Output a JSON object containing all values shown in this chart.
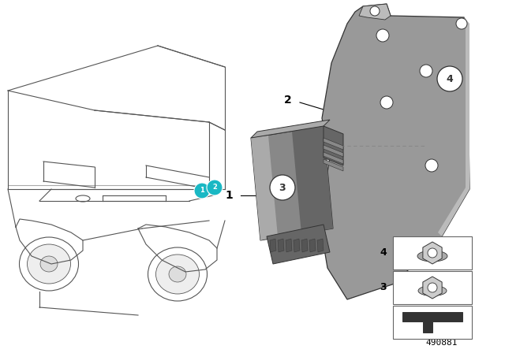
{
  "background_color": "#ffffff",
  "part_number": "490881",
  "car_color": "#555555",
  "car_lw": 0.8,
  "unit_color": "#888888",
  "unit_light": "#aaaaaa",
  "unit_dark": "#666666",
  "bracket_color": "#999999",
  "bracket_light": "#bbbbbb",
  "bracket_dark": "#777777",
  "outline_color": "#333333",
  "inset_color": "#aaaaaa",
  "teal": "#1ab8c4"
}
